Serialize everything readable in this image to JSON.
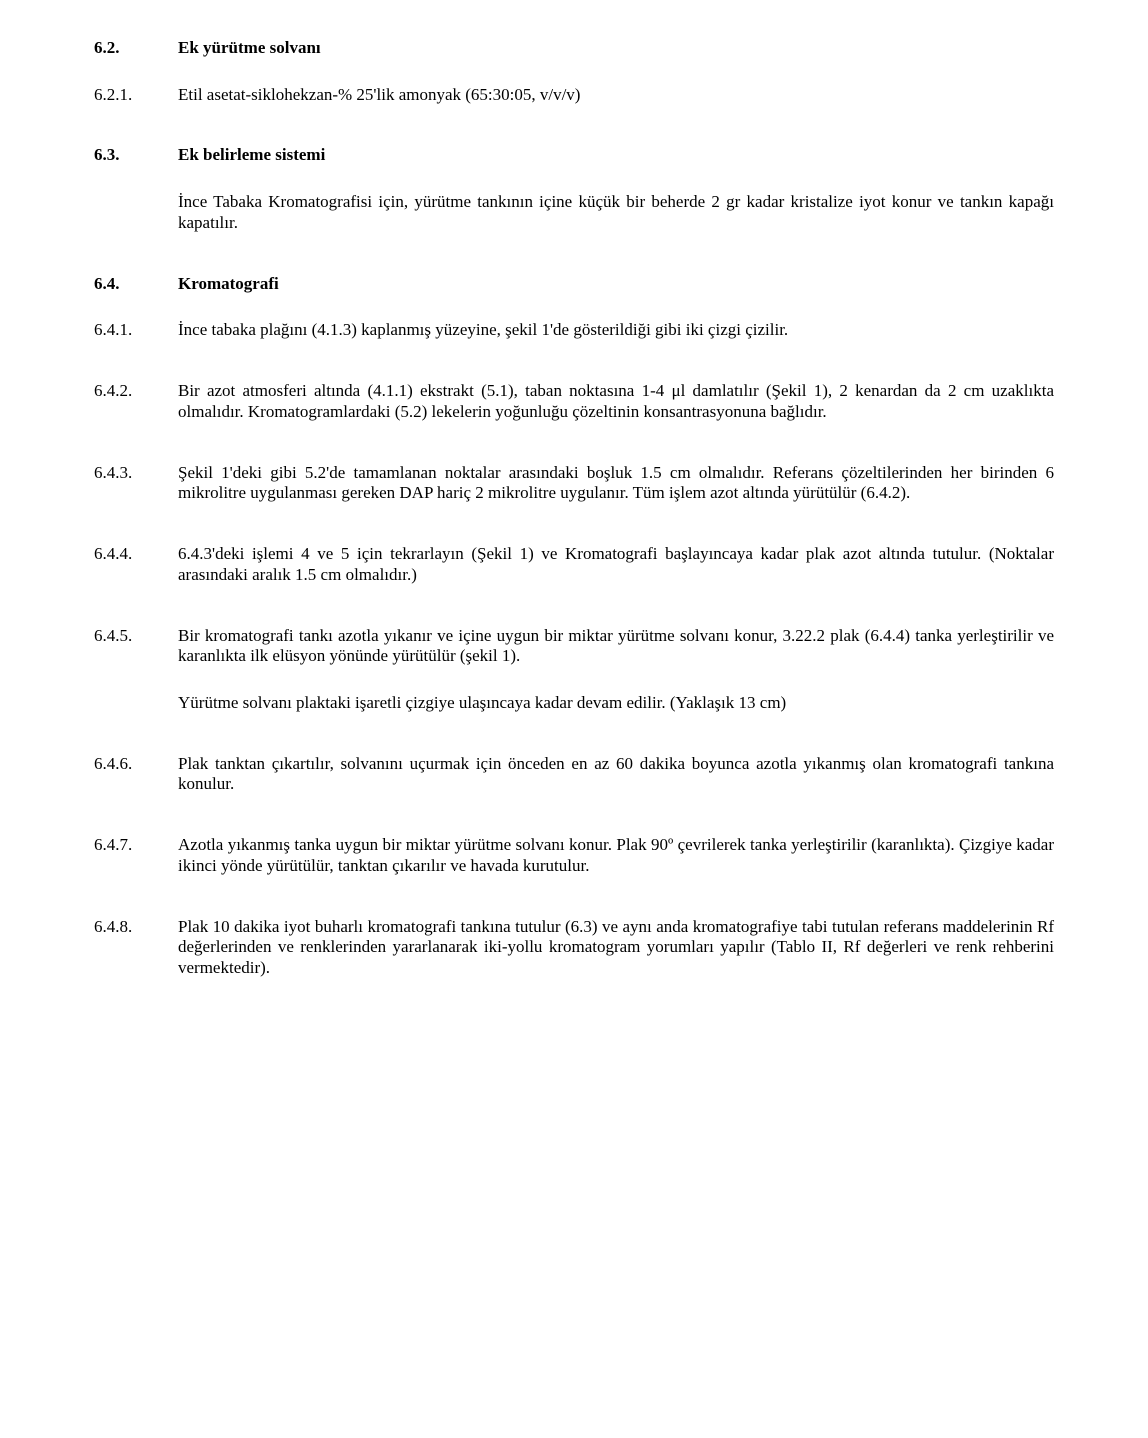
{
  "s62": {
    "num": "6.2.",
    "title": "Ek yürütme solvanı"
  },
  "s621": {
    "num": "6.2.1.",
    "text": "Etil asetat-siklohekzan-% 25'lik amonyak (65:30:05, v/v/v)"
  },
  "s63": {
    "num": "6.3.",
    "title": "Ek belirleme sistemi"
  },
  "s63p": "İnce Tabaka Kromatografisi için, yürütme tankının içine küçük bir beherde 2 gr kadar kristalize iyot konur ve tankın kapağı kapatılır.",
  "s64": {
    "num": "6.4.",
    "title": "Kromatografi"
  },
  "s641": {
    "num": "6.4.1.",
    "text": "İnce tabaka plağını (4.1.3) kaplanmış yüzeyine, şekil 1'de gösterildiği gibi iki çizgi çizilir."
  },
  "s642": {
    "num": "6.4.2.",
    "text": "Bir azot atmosferi altında (4.1.1) ekstrakt (5.1), taban noktasına 1-4 μl damlatılır (Şekil 1), 2 kenardan da 2 cm uzaklıkta olmalıdır. Kromatogramlardaki (5.2) lekelerin yoğunluğu çözeltinin konsantrasyonuna bağlıdır."
  },
  "s643": {
    "num": "6.4.3.",
    "text": "Şekil 1'deki gibi 5.2'de tamamlanan noktalar arasındaki boşluk 1.5 cm olmalıdır. Referans çözeltilerinden her birinden 6 mikrolitre uygulanması gereken DAP hariç 2 mikrolitre uygulanır. Tüm işlem azot altında yürütülür (6.4.2)."
  },
  "s644": {
    "num": "6.4.4.",
    "text": "6.4.3'deki işlemi 4 ve 5 için tekrarlayın (Şekil 1) ve Kromatografi başlayıncaya kadar plak azot altında tutulur. (Noktalar arasındaki aralık 1.5 cm olmalıdır.)"
  },
  "s645": {
    "num": "6.4.5.",
    "text": "Bir kromatografi tankı azotla yıkanır ve içine uygun bir miktar yürütme solvanı konur, 3.22.2 plak (6.4.4) tanka yerleştirilir ve karanlıkta ilk elüsyon yönünde yürütülür (şekil 1)."
  },
  "s645p": "Yürütme solvanı plaktaki işaretli çizgiye ulaşıncaya kadar devam edilir. (Yaklaşık 13 cm)",
  "s646": {
    "num": "6.4.6.",
    "text": "Plak tanktan çıkartılır, solvanını uçurmak için önceden en az 60 dakika boyunca azotla yıkanmış olan kromatografi tankına konulur."
  },
  "s647": {
    "num": "6.4.7.",
    "text": "Azotla yıkanmış tanka uygun bir miktar yürütme solvanı konur. Plak 90º çevrilerek tanka yerleştirilir (karanlıkta). Çizgiye kadar ikinci yönde yürütülür, tanktan çıkarılır ve havada kurutulur."
  },
  "s648": {
    "num": "6.4.8.",
    "text": "Plak 10 dakika iyot buharlı kromatografi tankına tutulur (6.3) ve aynı anda kromatografiye tabi tutulan referans maddelerinin Rf değerlerinden ve renklerinden yararlanarak iki-yollu kromatogram yorumları yapılır (Tablo II, Rf değerleri ve renk rehberini vermektedir)."
  }
}
